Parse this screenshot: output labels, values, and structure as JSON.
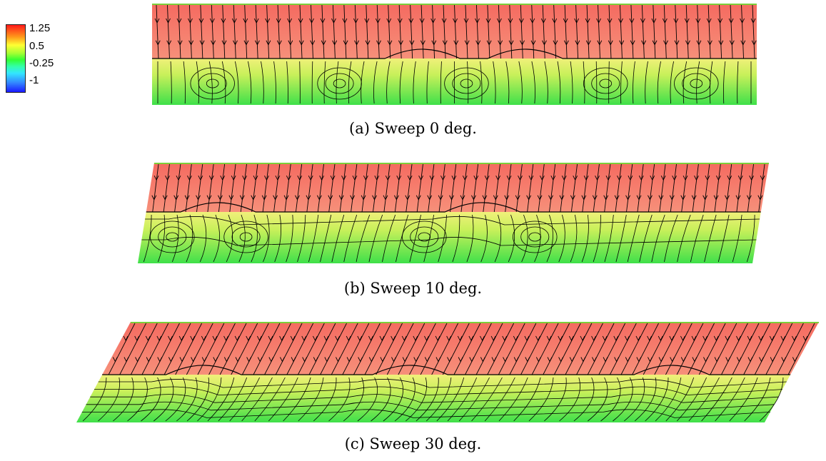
{
  "colorbar": {
    "labels": [
      "1.25",
      "0.5",
      "-0.25",
      "-1"
    ],
    "min": -1,
    "max": 1.25
  },
  "panels": [
    {
      "caption": "(a) Sweep 0 deg.",
      "sweep_deg": 0
    },
    {
      "caption": "(b) Sweep 10 deg.",
      "sweep_deg": 10
    },
    {
      "caption": "(c) Sweep 30 deg.",
      "sweep_deg": 30
    }
  ],
  "colors": {
    "upper_region": "#f4766a",
    "interface": "#f0f07a",
    "lower_region": "#3fe04a",
    "top_edge": "#7ccf3a",
    "streamline": "#000000"
  }
}
